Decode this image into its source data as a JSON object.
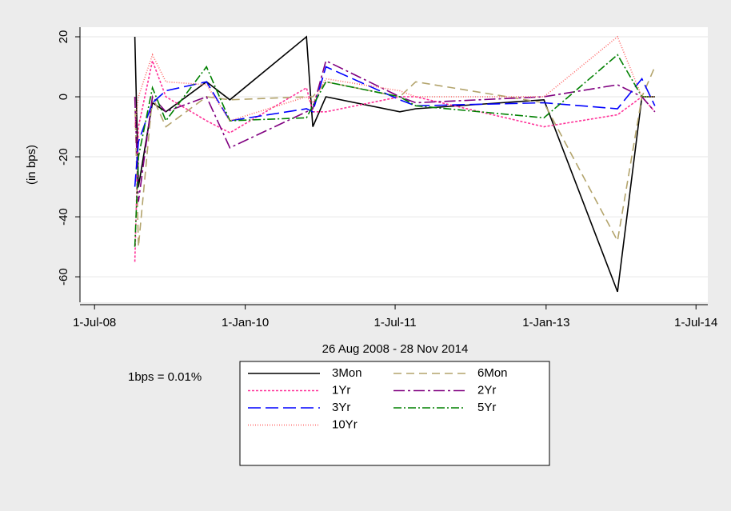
{
  "chart_data": {
    "type": "line",
    "y_label": "(in bps)",
    "x_label": "26 Aug 2008 - 28 Nov 2014",
    "note": "1bps = 0.01%",
    "x": [
      "2008-11-25",
      "2008-12-08",
      "2009-01-28",
      "2009-03-18",
      "2009-08-13",
      "2009-11-06",
      "2010-08-12",
      "2010-09-04",
      "2010-10-22",
      "2011-07-18",
      "2011-09-14",
      "2012-12-24",
      "2013-09-18",
      "2013-12-16",
      "2014-02-01"
    ],
    "series": [
      {
        "name": "3Mon",
        "color": "#000000",
        "dash": "none",
        "values": [
          20,
          -30,
          -2,
          -5,
          5,
          -1,
          20,
          -10,
          0,
          -5,
          -4,
          -1,
          -65,
          0,
          0
        ]
      },
      {
        "name": "6Mon",
        "color": "#b3a46c",
        "dash": "10,6",
        "values": [
          0,
          -50,
          0,
          -10,
          0,
          -1,
          0,
          0,
          5,
          0,
          5,
          -2,
          -48,
          0,
          10
        ]
      },
      {
        "name": "1Yr",
        "color": "#ff3399",
        "dash": "3,2",
        "values": [
          -55,
          -10,
          12,
          0,
          -8,
          -12,
          3,
          -5,
          -5,
          0,
          0,
          -10,
          -6,
          0,
          -5
        ]
      },
      {
        "name": "2Yr",
        "color": "#800080",
        "dash": "14,4,3,4",
        "values": [
          0,
          -35,
          0,
          -5,
          0,
          -17,
          -5,
          -4,
          12,
          0,
          -2,
          0,
          4,
          0,
          -5
        ]
      },
      {
        "name": "3Yr",
        "color": "#0000ff",
        "dash": "16,6",
        "values": [
          -30,
          -15,
          -2,
          2,
          5,
          -8,
          -4,
          -5,
          10,
          -1,
          -3,
          -2,
          -4,
          6,
          -3
        ]
      },
      {
        "name": "5Yr",
        "color": "#008000",
        "dash": "10,3,2,3",
        "values": [
          -50,
          -20,
          3,
          -8,
          10,
          -8,
          -7,
          -3,
          5,
          0,
          -3,
          -7,
          14,
          0,
          0
        ]
      },
      {
        "name": "10Yr",
        "color": "#ff6666",
        "dash": "1,2",
        "values": [
          -10,
          0,
          14,
          5,
          4,
          -8,
          0,
          -2,
          6,
          2,
          0,
          0,
          20,
          0,
          0
        ]
      }
    ],
    "xlim": [
      "2008-05-09",
      "2014-08-13"
    ],
    "xticks": [
      {
        "value": "2008-07-01",
        "label": "1-Jul-08"
      },
      {
        "value": "2010-01-01",
        "label": "1-Jan-10"
      },
      {
        "value": "2011-07-01",
        "label": "1-Jul-11"
      },
      {
        "value": "2013-01-01",
        "label": "1-Jan-13"
      },
      {
        "value": "2014-07-01",
        "label": "1-Jul-14"
      }
    ],
    "ylim": [
      -68.5,
      23.2
    ],
    "yticks": [
      20,
      0,
      -20,
      -40,
      -60
    ],
    "grid": true
  }
}
